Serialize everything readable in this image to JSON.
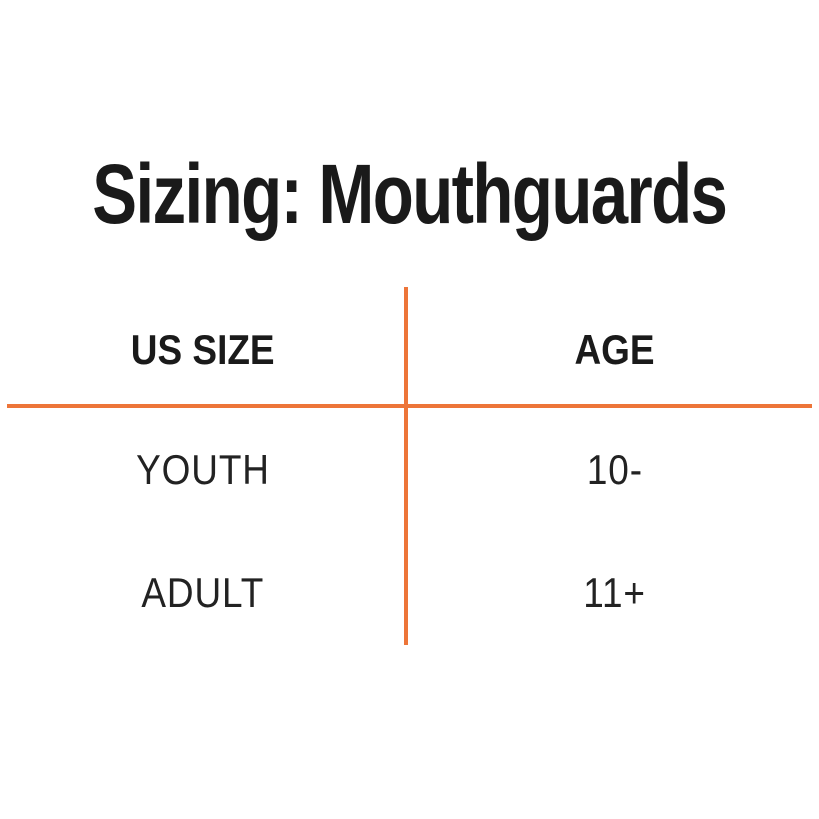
{
  "page": {
    "title": "Sizing: Mouthguards"
  },
  "table": {
    "columns": [
      "US SIZE",
      "AGE"
    ],
    "rows": [
      {
        "us_size": "YOUTH",
        "age": "10-"
      },
      {
        "us_size": "ADULT",
        "age": "11+"
      }
    ]
  },
  "chart_data": {
    "type": "table",
    "title": "Sizing: Mouthguards",
    "columns": [
      "US SIZE",
      "AGE"
    ],
    "rows": [
      [
        "YOUTH",
        "10-"
      ],
      [
        "ADULT",
        "11+"
      ]
    ],
    "layout_hints": {
      "divider_style": "orange cross: vertical line between columns, horizontal line under header row",
      "alignment": "center"
    }
  },
  "colors": {
    "accent": "#ED7539",
    "text": "#1A1A1A",
    "background": "#FFFFFF"
  }
}
